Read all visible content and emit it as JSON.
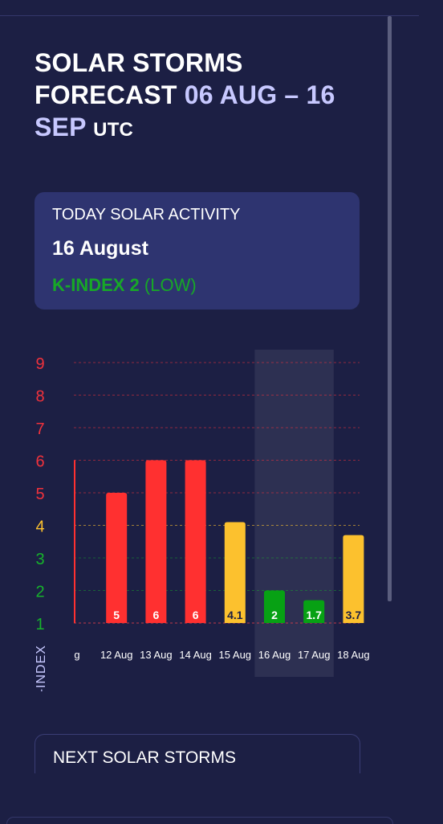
{
  "header": {
    "title_main": "SOLAR STORMS FORECAST",
    "title_range": "06 AUG – 16 SEP",
    "title_suffix": "UTC"
  },
  "today": {
    "label": "TODAY SOLAR ACTIVITY",
    "date": "16 August",
    "kindex_label": "K-INDEX 2",
    "level": "(LOW)"
  },
  "chart_data": {
    "type": "bar",
    "ylabel": "K-INDEX",
    "ylim": [
      1,
      9
    ],
    "yticks": [
      1,
      2,
      3,
      4,
      5,
      6,
      7,
      8,
      9
    ],
    "categories": [
      "g",
      "12 Aug",
      "13 Aug",
      "14 Aug",
      "15 Aug",
      "16 Aug",
      "17 Aug",
      "18 Aug"
    ],
    "values": [
      null,
      5,
      6,
      6,
      4.1,
      2,
      1.7,
      3.7
    ],
    "value_labels": [
      "",
      "5",
      "6",
      "6",
      "4.1",
      "2",
      "1.7",
      "3.7"
    ],
    "bar_colors": [
      "#ff3030",
      "#ff3030",
      "#ff3030",
      "#ff3030",
      "#fcc12e",
      "#07a114",
      "#07a114",
      "#fcc12e"
    ],
    "tick_colors": {
      "low": "#16b32b",
      "moderate": "#fcc12e",
      "high": "#f0323c"
    },
    "highlight_range": [
      "16 Aug",
      "17 Aug"
    ]
  },
  "next": {
    "label": "NEXT SOLAR STORMS"
  }
}
